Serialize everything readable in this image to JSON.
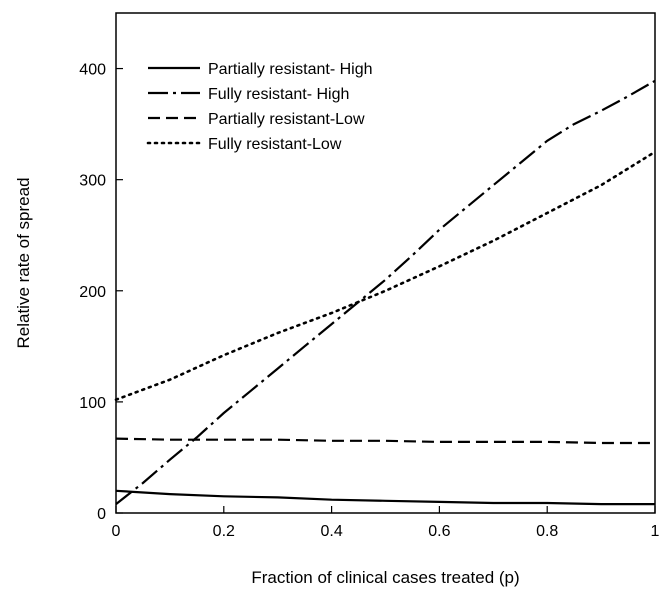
{
  "chart_data": {
    "type": "line",
    "title": "",
    "xlabel": "Fraction of clinical cases treated (p)",
    "ylabel": "Relative rate of spread",
    "xlim": [
      0,
      1
    ],
    "ylim": [
      0,
      450
    ],
    "xticks": [
      0,
      0.2,
      0.4,
      0.6,
      0.8,
      1
    ],
    "xtick_labels": [
      "0",
      "0.2",
      "0.4",
      "0.6",
      "0.8",
      "1"
    ],
    "yticks": [
      0,
      100,
      200,
      300,
      400
    ],
    "ytick_labels": [
      "0",
      "100",
      "200",
      "300",
      "400"
    ],
    "grid": false,
    "legend_position": "top-left",
    "series": [
      {
        "name": "Partially resistant- High",
        "dash": "solid",
        "x": [
          0,
          0.1,
          0.2,
          0.3,
          0.4,
          0.5,
          0.6,
          0.7,
          0.8,
          0.9,
          1.0
        ],
        "y": [
          20,
          17,
          15,
          14,
          12,
          11,
          10,
          9,
          9,
          8,
          8
        ]
      },
      {
        "name": "Fully resistant- High",
        "dash": "dashdot",
        "x": [
          0,
          0.05,
          0.1,
          0.15,
          0.2,
          0.25,
          0.3,
          0.35,
          0.4,
          0.45,
          0.5,
          0.55,
          0.6,
          0.65,
          0.7,
          0.75,
          0.8,
          0.85,
          0.9,
          0.95,
          1.0
        ],
        "y": [
          8,
          27,
          48,
          68,
          90,
          110,
          130,
          150,
          170,
          190,
          210,
          232,
          255,
          275,
          295,
          315,
          335,
          350,
          362,
          375,
          389
        ]
      },
      {
        "name": "Partially resistant-Low",
        "dash": "dashed",
        "x": [
          0,
          0.1,
          0.2,
          0.3,
          0.4,
          0.5,
          0.6,
          0.7,
          0.8,
          0.9,
          1.0
        ],
        "y": [
          67,
          66,
          66,
          66,
          65,
          65,
          64,
          64,
          64,
          63,
          63
        ]
      },
      {
        "name": "Fully resistant-Low",
        "dash": "dotted",
        "x": [
          0,
          0.1,
          0.2,
          0.3,
          0.4,
          0.5,
          0.6,
          0.7,
          0.8,
          0.9,
          1.0
        ],
        "y": [
          102,
          120,
          142,
          162,
          180,
          200,
          222,
          245,
          270,
          295,
          325
        ]
      }
    ]
  }
}
